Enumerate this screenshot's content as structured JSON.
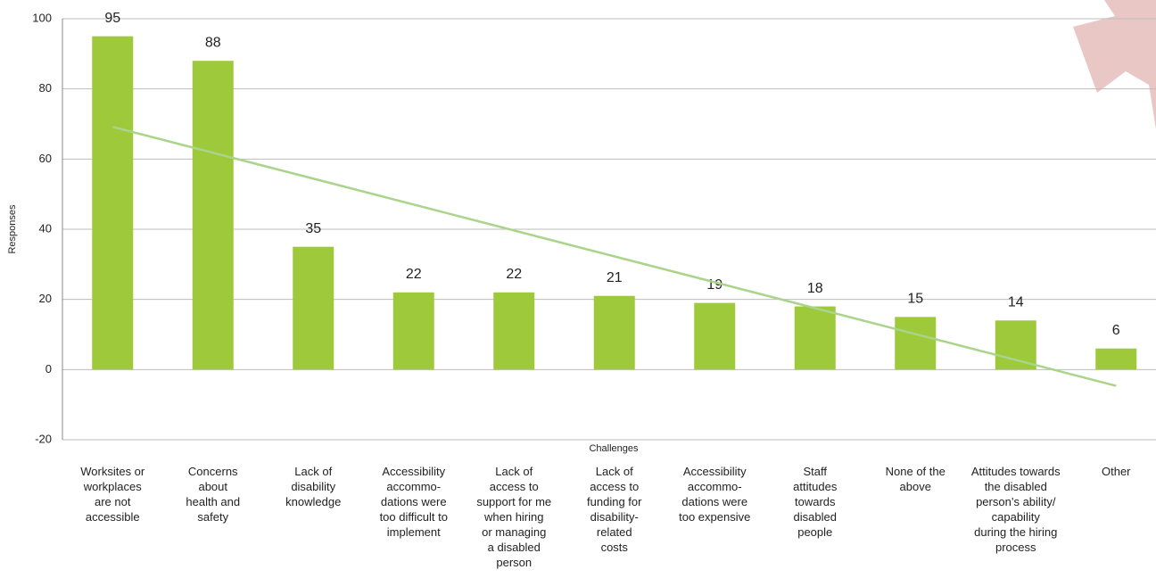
{
  "chart_data": {
    "type": "bar",
    "x_label": "Challenges",
    "y_label": "Responses",
    "categories": [
      "Worksites or\nworkplaces\nare not\naccessible",
      "Concerns\nabout\nhealth and\nsafety",
      "Lack of\ndisability\nknowledge",
      "Accessibility\naccommo-\ndations were\ntoo difficult to\nimplement",
      "Lack of\naccess to\nsupport for me\nwhen hiring\nor managing\na disabled\nperson",
      "Lack of\naccess to\nfunding for\ndisability-\nrelated\ncosts",
      "Accessibility\naccommo-\ndations were\ntoo expensive",
      "Staff\nattitudes\ntowards\ndisabled\npeople",
      "None of the\nabove",
      "Attitudes towards\nthe disabled\nperson’s ability/\ncapability\nduring the hiring\nprocess",
      "Other"
    ],
    "values": [
      95,
      88,
      35,
      22,
      22,
      21,
      19,
      18,
      15,
      14,
      6
    ],
    "color": "#9dc93b",
    "trendline": "linear",
    "trendline_color": "#a9d48a",
    "ylim": [
      -20,
      100
    ],
    "yticks": [
      -20,
      0,
      20,
      40,
      60,
      80,
      100
    ],
    "grid": true
  }
}
